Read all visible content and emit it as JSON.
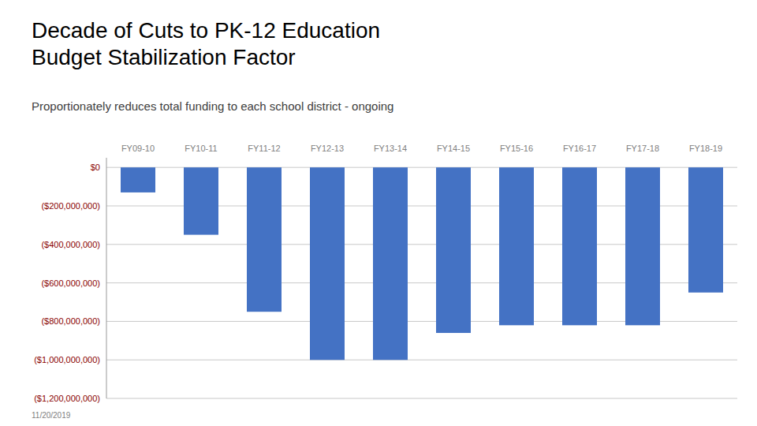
{
  "chart_data": {
    "type": "bar",
    "title": "Decade of Cuts to PK-12 Education\nBudget Stabilization Factor",
    "subtitle": "Proportionately reduces total funding to each school district - ongoing",
    "annotations": [
      "11/20/2019"
    ],
    "categories": [
      "FY09-10",
      "FY10-11",
      "FY11-12",
      "FY12-13",
      "FY13-14",
      "FY14-15",
      "FY15-16",
      "FY16-17",
      "FY17-18",
      "FY18-19"
    ],
    "values": [
      -130000000,
      -350000000,
      -750000000,
      -1000000000,
      -1000000000,
      -860000000,
      -820000000,
      -820000000,
      -820000000,
      -650000000
    ],
    "color": "#4472C4",
    "ylim": [
      -1200000000,
      50000000
    ],
    "yticks": [
      {
        "value": 0,
        "label": "$0"
      },
      {
        "value": -200000000,
        "label": "($200,000,000)"
      },
      {
        "value": -400000000,
        "label": "($400,000,000)"
      },
      {
        "value": -600000000,
        "label": "($600,000,000)"
      },
      {
        "value": -800000000,
        "label": "($800,000,000)"
      },
      {
        "value": -1000000000,
        "label": "($1,000,000,000)"
      },
      {
        "value": -1200000000,
        "label": "($1,200,000,000)"
      }
    ],
    "grid": true
  }
}
